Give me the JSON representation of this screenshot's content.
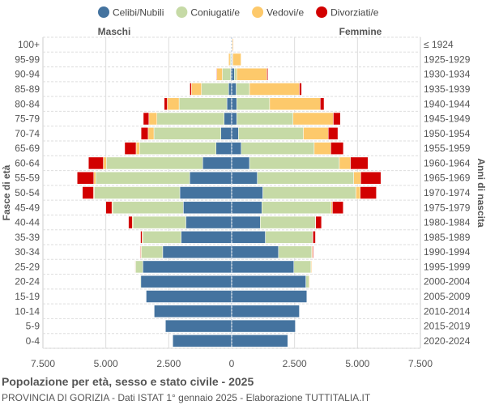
{
  "chart_data": {
    "type": "bar",
    "orientation": "horizontal-pyramid",
    "title": "Popolazione per età, sesso e stato civile - 2025",
    "subtitle": "PROVINCIA DI GORIZIA - Dati ISTAT 1° gennaio 2025 - Elaborazione TUTTITALIA.IT",
    "left_label": "Maschi",
    "right_label": "Femmine",
    "ylabel": "Fasce di età",
    "ylabel_right": "Anni di nascita",
    "xlim": [
      -7500,
      7500
    ],
    "xticks": [
      -7500,
      -5000,
      -2500,
      0,
      2500,
      5000,
      7500
    ],
    "xtick_labels": [
      "7.500",
      "5.000",
      "2.500",
      "0",
      "2.500",
      "5.000",
      "7.500"
    ],
    "grid": true,
    "legend_position": "top",
    "categories": [
      "100+",
      "95-99",
      "90-94",
      "85-89",
      "80-84",
      "75-79",
      "70-74",
      "65-69",
      "60-64",
      "55-59",
      "50-54",
      "45-49",
      "40-44",
      "35-39",
      "30-34",
      "25-29",
      "20-24",
      "15-19",
      "10-14",
      "5-9",
      "0-4"
    ],
    "birth_years": [
      "≤ 1924",
      "1925-1929",
      "1930-1934",
      "1935-1939",
      "1940-1944",
      "1945-1949",
      "1950-1954",
      "1955-1959",
      "1960-1964",
      "1965-1969",
      "1970-1974",
      "1975-1979",
      "1980-1984",
      "1985-1989",
      "1990-1994",
      "1995-1999",
      "2000-2004",
      "2005-2009",
      "2010-2014",
      "2015-2019",
      "2020-2024"
    ],
    "series": [
      {
        "name": "Celibi/Nubili",
        "color": "#44739f",
        "male": [
          5,
          20,
          40,
          120,
          190,
          300,
          430,
          620,
          1150,
          1670,
          2060,
          1920,
          1820,
          2010,
          2740,
          3530,
          3610,
          3400,
          3080,
          2630,
          2340
        ],
        "female": [
          15,
          25,
          110,
          180,
          200,
          200,
          270,
          380,
          710,
          1020,
          1240,
          1200,
          1140,
          1340,
          1860,
          2470,
          2950,
          2990,
          2690,
          2530,
          2230
        ]
      },
      {
        "name": "Coniugati/e",
        "color": "#c6daa6",
        "male": [
          3,
          40,
          330,
          1080,
          1900,
          2670,
          2660,
          3040,
          3830,
          3730,
          3400,
          2810,
          2100,
          1520,
          850,
          290,
          30,
          10,
          5,
          0,
          0
        ],
        "female": [
          5,
          20,
          90,
          530,
          1310,
          2240,
          2580,
          2900,
          3570,
          3830,
          3700,
          2750,
          2190,
          1880,
          1320,
          680,
          120,
          10,
          0,
          0,
          0
        ]
      },
      {
        "name": "Vedovi/e",
        "color": "#fdc96b",
        "male": [
          15,
          60,
          220,
          400,
          470,
          320,
          230,
          140,
          120,
          80,
          30,
          30,
          30,
          30,
          30,
          20,
          5,
          0,
          0,
          0,
          0
        ],
        "female": [
          40,
          330,
          1200,
          1980,
          2010,
          1600,
          990,
          660,
          440,
          280,
          170,
          55,
          10,
          10,
          30,
          30,
          30,
          0,
          0,
          0,
          0
        ]
      },
      {
        "name": "Divorziati/e",
        "color": "#d20000",
        "male": [
          2,
          5,
          20,
          60,
          120,
          220,
          280,
          450,
          590,
          660,
          440,
          240,
          150,
          60,
          20,
          10,
          0,
          0,
          0,
          0,
          0
        ],
        "female": [
          5,
          10,
          40,
          90,
          150,
          280,
          380,
          500,
          700,
          800,
          640,
          430,
          230,
          100,
          30,
          5,
          0,
          0,
          0,
          0,
          0
        ]
      }
    ]
  }
}
